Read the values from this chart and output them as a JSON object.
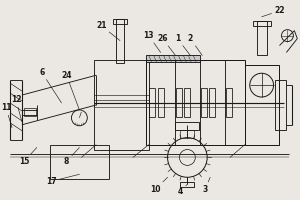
{
  "bg_color": "#ebe8e3",
  "line_color": "#1a1a1a",
  "lw": 0.65,
  "figsize": [
    3.0,
    2.0
  ],
  "dpi": 100
}
